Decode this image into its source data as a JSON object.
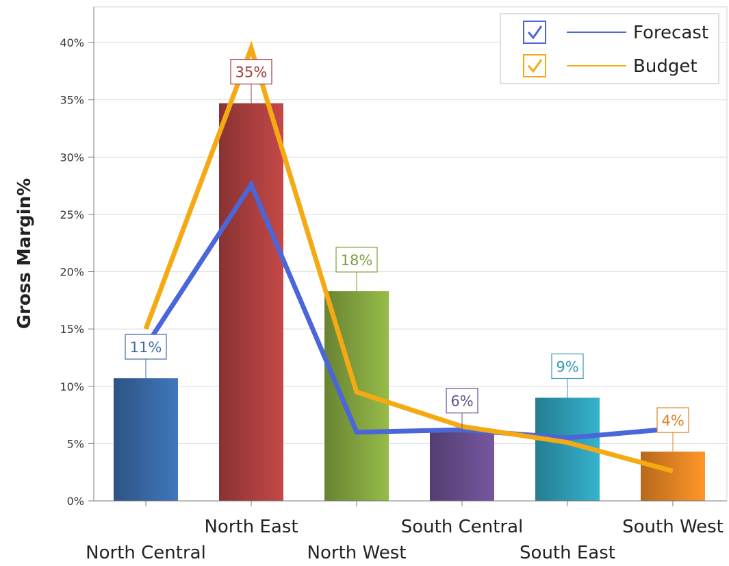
{
  "chart_data": {
    "type": "bar",
    "title": "",
    "xlabel": "",
    "ylabel": "Gross Margin%",
    "ylim": [
      0,
      40
    ],
    "y_ticks": [
      "0%",
      "5%",
      "10%",
      "15%",
      "20%",
      "25%",
      "30%",
      "35%",
      "40%"
    ],
    "grid": true,
    "legend_position": "top-right",
    "categories": [
      "North Central",
      "North East",
      "North West",
      "South Central",
      "South East",
      "South West"
    ],
    "bars": {
      "values": [
        10.7,
        34.7,
        18.3,
        6.0,
        9.0,
        4.3
      ],
      "labels": [
        "11%",
        "35%",
        "18%",
        "6%",
        "9%",
        "4%"
      ],
      "colors": [
        "#3a6aa8",
        "#b04040",
        "#86a840",
        "#6a4e90",
        "#2fa0b8",
        "#ea8624"
      ],
      "label_colors": [
        "#3f6aa6",
        "#a83a3a",
        "#7e9e3a",
        "#6a4e90",
        "#2f98b0",
        "#e07f20"
      ]
    },
    "series": [
      {
        "name": "Forecast",
        "type": "line",
        "color": "#4a66d8",
        "values": [
          13.5,
          27.6,
          6.0,
          6.2,
          5.5,
          6.3
        ]
      },
      {
        "name": "Budget",
        "type": "line",
        "color": "#f5a913",
        "values": [
          15.0,
          39.5,
          9.5,
          6.5,
          5.1,
          2.6
        ]
      }
    ]
  }
}
